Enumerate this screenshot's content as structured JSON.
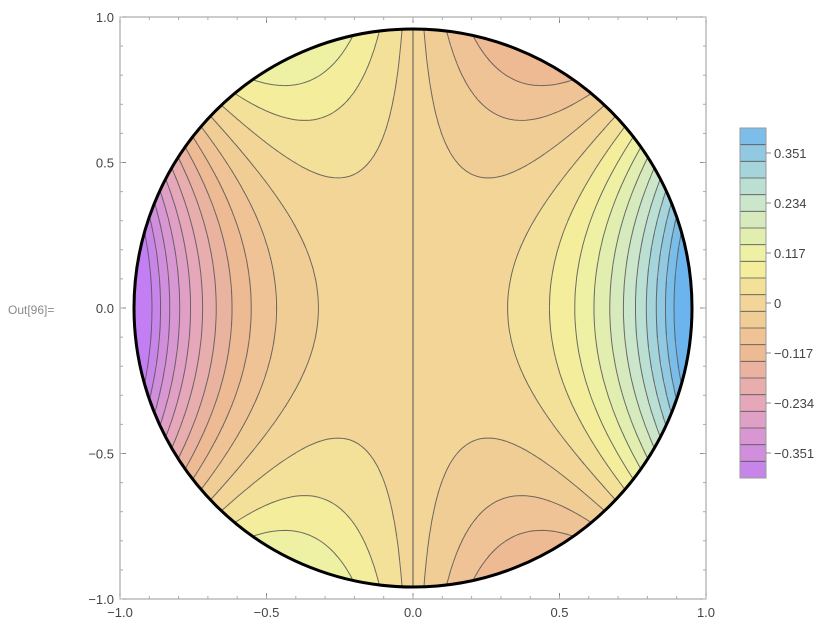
{
  "cell_label": "Out[96]=",
  "chart_data": {
    "type": "contour",
    "function": "z = (x^2 - y^2) * x / 2, drawn inside the unit disk",
    "xlim": [
      -1.0,
      1.0
    ],
    "ylim": [
      -1.0,
      1.0
    ],
    "x_ticks": [
      "-1.0",
      "-0.5",
      "0.0",
      "0.5",
      "1.0"
    ],
    "y_ticks": [
      "-1.0",
      "-0.5",
      "0.0",
      "0.5",
      "1.0"
    ],
    "xlabel": "",
    "ylabel": "",
    "title": "",
    "grid": false,
    "region": "disk of radius 1 centered at origin",
    "contour_levels": [
      -0.4095,
      -0.3705,
      -0.3315,
      -0.2925,
      -0.2535,
      -0.2145,
      -0.1755,
      -0.1365,
      -0.0975,
      -0.0585,
      -0.0195,
      0.0195,
      0.0585,
      0.0975,
      0.1365,
      0.1755,
      0.2145,
      0.2535,
      0.2925,
      0.3315,
      0.3705,
      0.4095
    ],
    "legend": {
      "placement": "right",
      "labels": [
        "0.351",
        "0.234",
        "0.117",
        "0",
        "−0.117",
        "−0.234",
        "−0.351"
      ],
      "label_values": [
        0.351,
        0.234,
        0.117,
        0,
        -0.117,
        -0.234,
        -0.351
      ],
      "bands": 21
    },
    "colors": {
      "min": "#c27ef2",
      "low": "#e3a3c2",
      "mid_low": "#edb994",
      "zero": "#f3d697",
      "mid_high": "#f3f39e",
      "high": "#c3e3d2",
      "max": "#6bb4ee",
      "contour_line": "#555555",
      "boundary": "#000000"
    }
  }
}
